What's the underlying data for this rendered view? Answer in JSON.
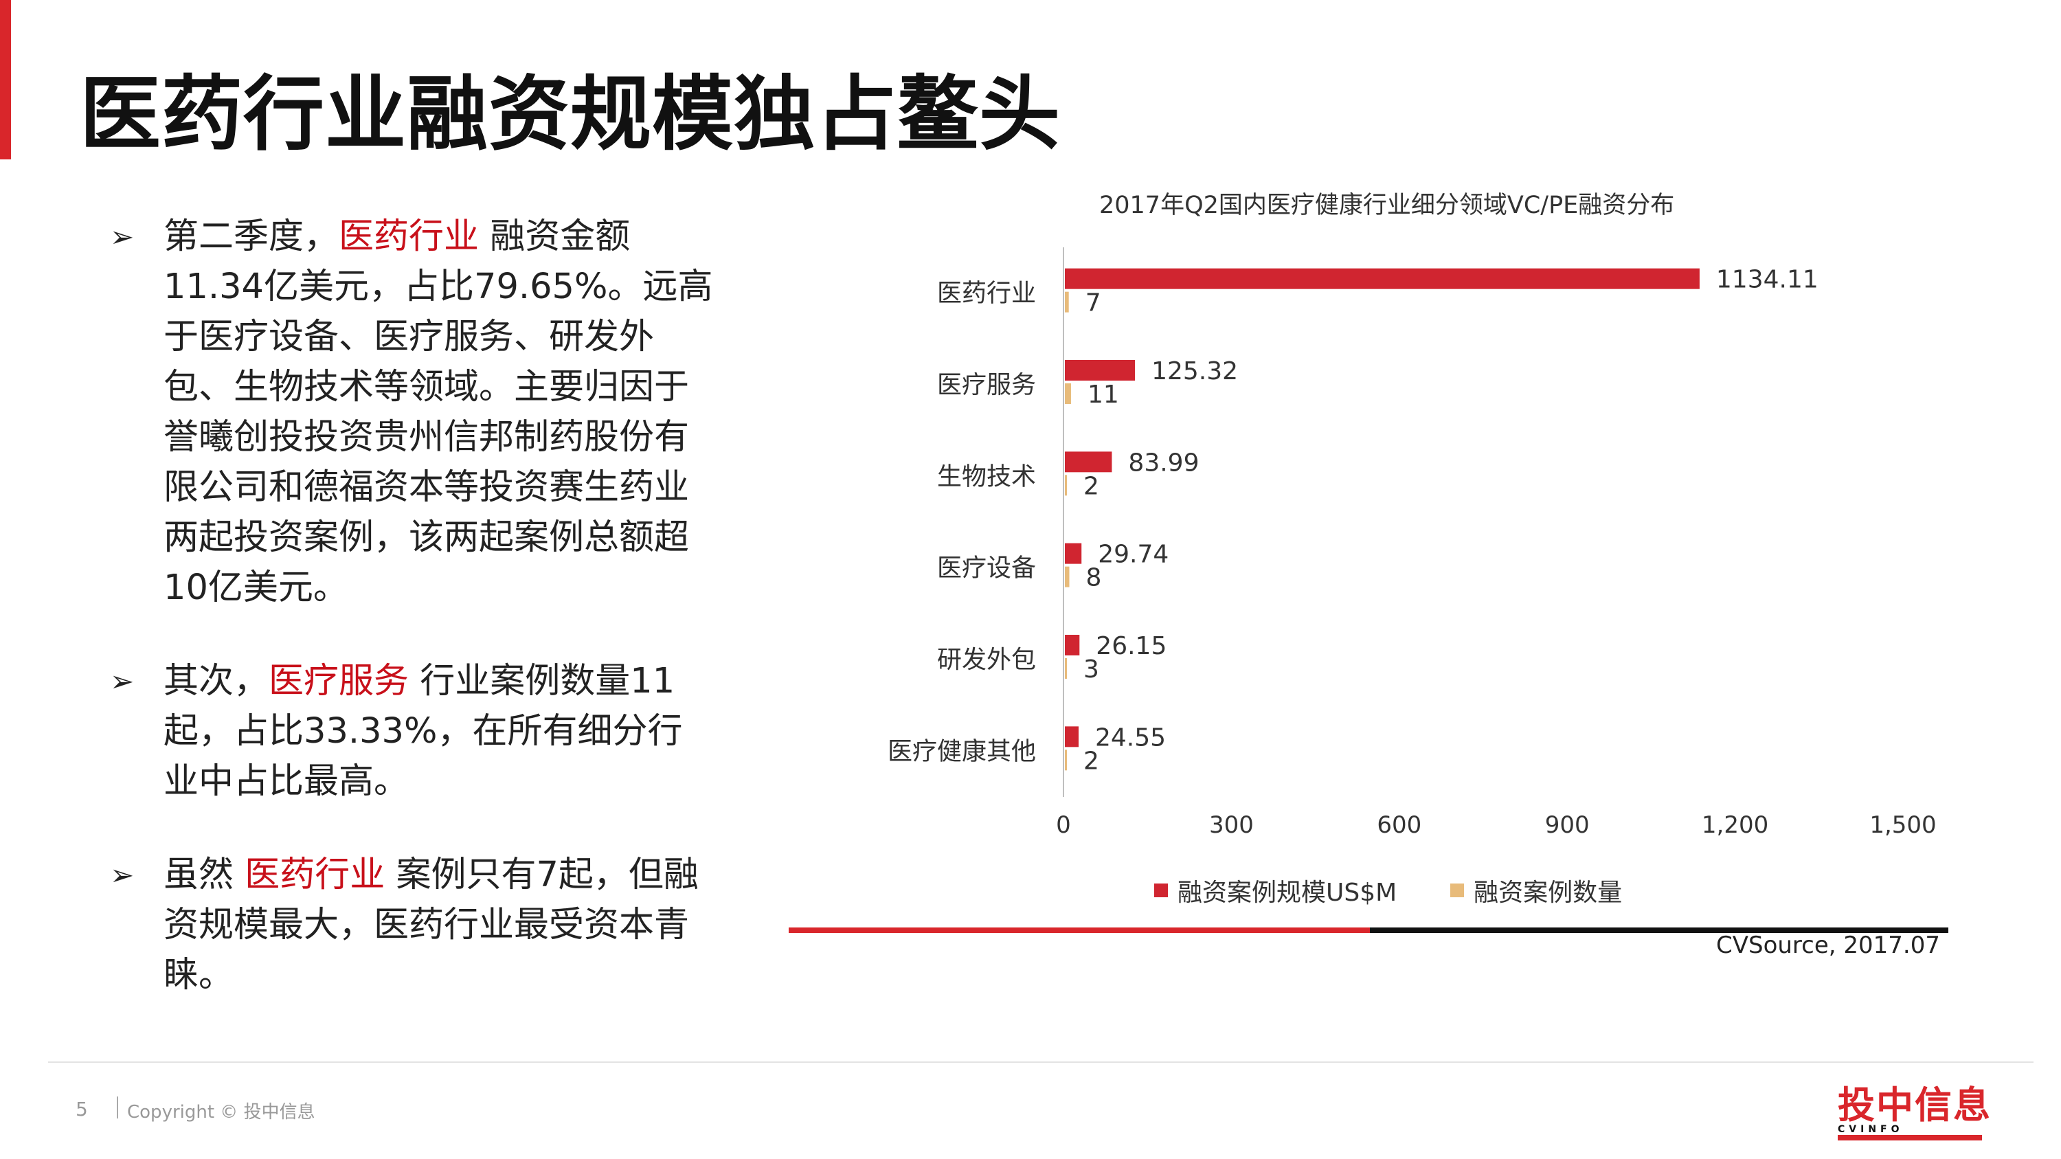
{
  "slide": {
    "title": "医药行业融资规模独占鳌头",
    "page_number": "5",
    "copyright": "Copyright © 投中信息",
    "logo_text": "投中信息",
    "logo_sub": "CVINFO"
  },
  "bullets": [
    {
      "arrow": "➢",
      "before": "第二季度，",
      "highlight": "医药行业",
      "after": "  融资金额11.34亿美元，占比79.65%。远高于医疗设备、医疗服务、研发外包、生物技术等领域。主要归因于誉曦创投投资贵州信邦制药股份有限公司和德福资本等投资赛生药业两起投资案例，该两起案例总额超10亿美元。"
    },
    {
      "arrow": "➢",
      "before": "其次，",
      "highlight": "医疗服务",
      "after": "  行业案例数量11起，占比33.33%，在所有细分行业中占比最高。"
    },
    {
      "arrow": "➢",
      "before": "虽然 ",
      "highlight": "医药行业",
      "after": " 案例只有7起，但融资规模最大，医药行业最受资本青睐。"
    }
  ],
  "chart_data": {
    "type": "bar",
    "orientation": "horizontal",
    "title": "2017年Q2国内医疗健康行业细分领域VC/PE融资分布",
    "categories": [
      "医药行业",
      "医疗服务",
      "生物技术",
      "医疗设备",
      "研发外包",
      "医疗健康其他"
    ],
    "series": [
      {
        "name": "融资案例规模US$M",
        "color": "#d02530",
        "values": [
          1134.11,
          125.32,
          83.99,
          29.74,
          26.15,
          24.55
        ],
        "labels": [
          "1134.11",
          "125.32",
          "83.99",
          "29.74",
          "26.15",
          "24.55"
        ]
      },
      {
        "name": "融资案例数量",
        "color": "#e8bb7a",
        "values": [
          7,
          11,
          2,
          8,
          3,
          2
        ],
        "labels": [
          "7",
          "11",
          "2",
          "8",
          "3",
          "2"
        ]
      }
    ],
    "xlim": [
      0,
      1500
    ],
    "xticks": [
      0,
      300,
      600,
      900,
      1200,
      1500
    ],
    "xtick_labels": [
      "0",
      "300",
      "600",
      "900",
      "1,200",
      "1,500"
    ],
    "legend_position": "bottom",
    "grid": false,
    "source": "CVSource, 2017.07"
  }
}
